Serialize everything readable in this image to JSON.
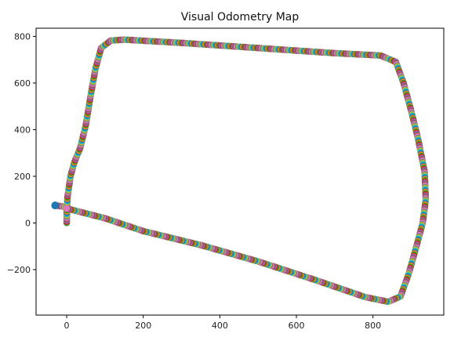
{
  "chart_data": {
    "type": "scatter",
    "title": "Visual Odometry Map",
    "xlabel": "",
    "ylabel": "",
    "xlim": [
      -80,
      985
    ],
    "ylim": [
      -395,
      835
    ],
    "xticks": [
      0,
      200,
      400,
      600,
      800
    ],
    "yticks": [
      -200,
      0,
      200,
      400,
      600,
      800
    ],
    "xtick_labels": [
      "0",
      "200",
      "400",
      "600",
      "800"
    ],
    "ytick_labels": [
      "−200",
      "0",
      "200",
      "400",
      "600",
      "800"
    ],
    "grid": false,
    "legend": "none",
    "marker_colors": [
      "#1f77b4",
      "#ff7f0e",
      "#2ca02c",
      "#d62728",
      "#9467bd",
      "#8c564b",
      "#e377c2",
      "#7f7f7f",
      "#bcbd22",
      "#17becf"
    ],
    "trajectory_waypoints": [
      {
        "x": -30,
        "y": 75
      },
      {
        "x": 0,
        "y": 68
      },
      {
        "x": 0,
        "y": 0
      },
      {
        "x": 2,
        "y": 110
      },
      {
        "x": 10,
        "y": 200
      },
      {
        "x": 20,
        "y": 260
      },
      {
        "x": 35,
        "y": 320
      },
      {
        "x": 50,
        "y": 420
      },
      {
        "x": 62,
        "y": 540
      },
      {
        "x": 75,
        "y": 660
      },
      {
        "x": 90,
        "y": 750
      },
      {
        "x": 115,
        "y": 782
      },
      {
        "x": 150,
        "y": 786
      },
      {
        "x": 300,
        "y": 772
      },
      {
        "x": 500,
        "y": 750
      },
      {
        "x": 700,
        "y": 728
      },
      {
        "x": 820,
        "y": 718
      },
      {
        "x": 860,
        "y": 690
      },
      {
        "x": 880,
        "y": 600
      },
      {
        "x": 900,
        "y": 480
      },
      {
        "x": 918,
        "y": 360
      },
      {
        "x": 935,
        "y": 220
      },
      {
        "x": 938,
        "y": 100
      },
      {
        "x": 930,
        "y": 0
      },
      {
        "x": 912,
        "y": -110
      },
      {
        "x": 893,
        "y": -220
      },
      {
        "x": 872,
        "y": -315
      },
      {
        "x": 840,
        "y": -338
      },
      {
        "x": 780,
        "y": -318
      },
      {
        "x": 650,
        "y": -245
      },
      {
        "x": 500,
        "y": -165
      },
      {
        "x": 350,
        "y": -95
      },
      {
        "x": 200,
        "y": -35
      },
      {
        "x": 100,
        "y": 20
      },
      {
        "x": 0,
        "y": 62
      }
    ]
  }
}
